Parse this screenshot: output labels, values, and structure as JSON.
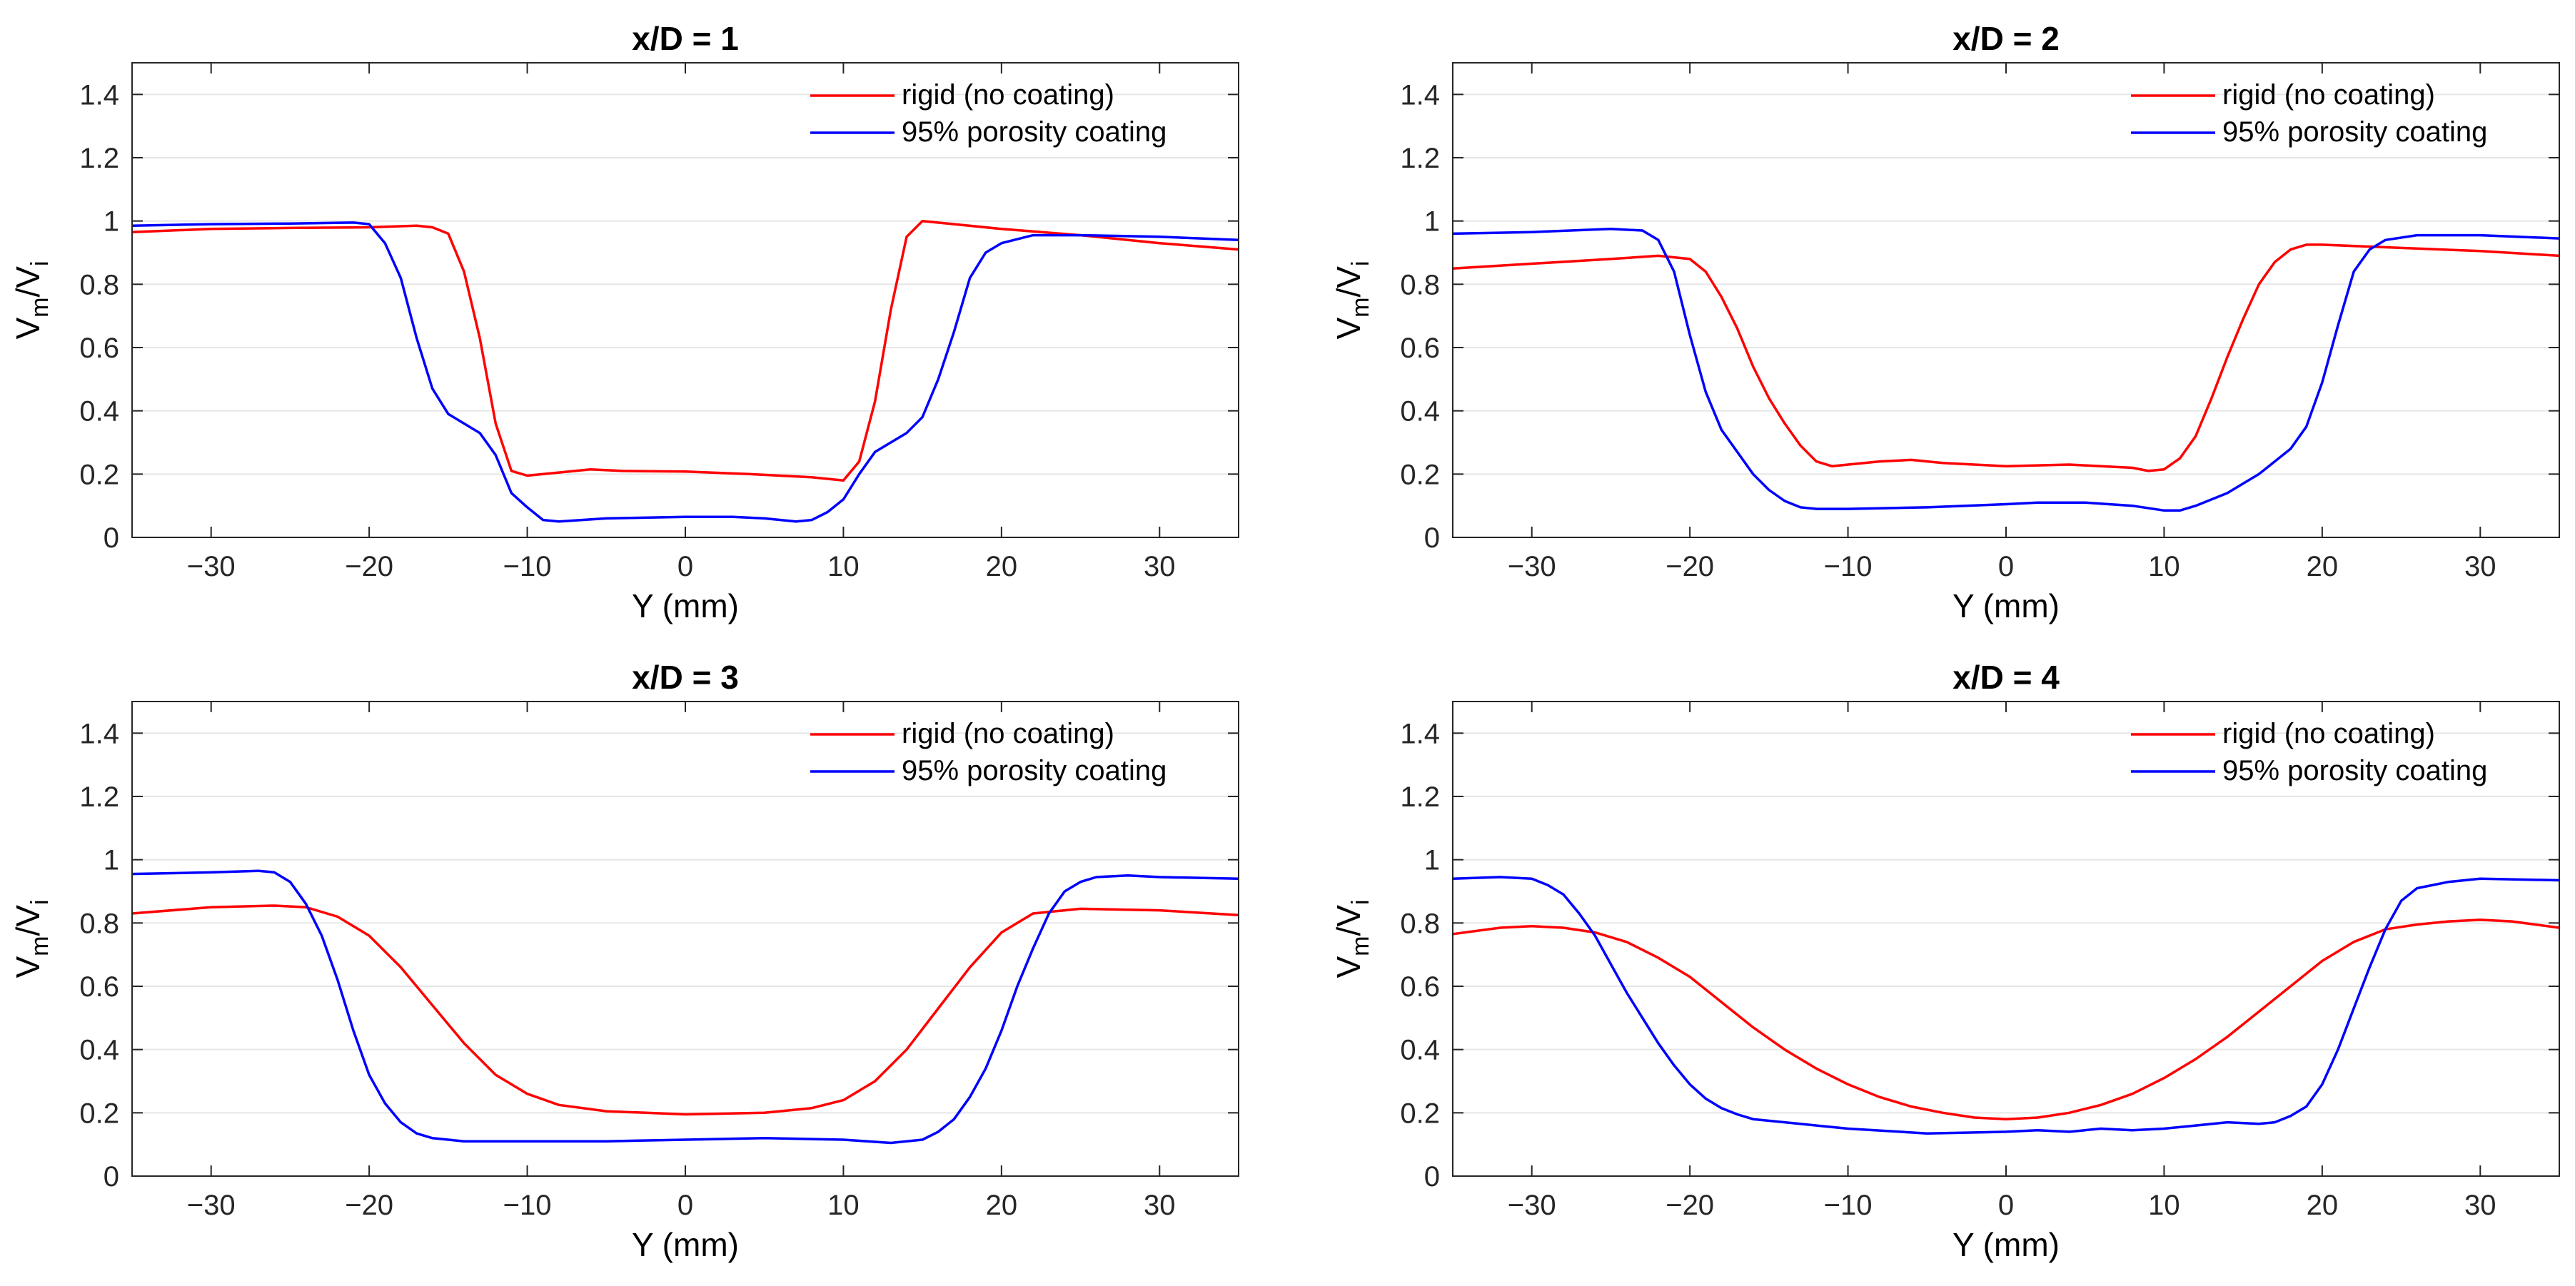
{
  "chart_data": [
    {
      "type": "line",
      "title": "x/D = 1",
      "xlabel": "Y (mm)",
      "ylabel": "V_m/V_i",
      "xlim": [
        -35,
        35
      ],
      "ylim": [
        0,
        1.5
      ],
      "xticks": [
        -30,
        -20,
        -10,
        0,
        10,
        20,
        30
      ],
      "xtick_labels": [
        "−30",
        "−20",
        "−10",
        "0",
        "10",
        "20",
        "30"
      ],
      "yticks": [
        0,
        0.2,
        0.4,
        0.6,
        0.8,
        1,
        1.2,
        1.4
      ],
      "ytick_labels": [
        "0",
        "0.2",
        "0.4",
        "0.6",
        "0.8",
        "1",
        "1.2",
        "1.4"
      ],
      "grid": "horizontal",
      "legend_position": "top-right",
      "series": [
        {
          "name": "rigid (no coating)",
          "color": "#ff0000",
          "x": [
            -35,
            -30,
            -25,
            -20,
            -17,
            -16,
            -15,
            -14,
            -13,
            -12,
            -11,
            -10,
            -9,
            -8,
            -6,
            -4,
            0,
            4,
            8,
            9,
            10,
            11,
            12,
            13,
            14,
            15,
            17,
            20,
            25,
            30,
            35
          ],
          "y": [
            0.965,
            0.975,
            0.978,
            0.98,
            0.985,
            0.98,
            0.96,
            0.84,
            0.63,
            0.36,
            0.21,
            0.195,
            0.2,
            0.205,
            0.215,
            0.21,
            0.208,
            0.2,
            0.19,
            0.185,
            0.18,
            0.24,
            0.43,
            0.72,
            0.95,
            1.0,
            0.99,
            0.975,
            0.955,
            0.93,
            0.91
          ]
        },
        {
          "name": "95% porosity coating",
          "color": "#0000ff",
          "x": [
            -35,
            -30,
            -25,
            -21,
            -20,
            -19,
            -18,
            -17,
            -16,
            -15,
            -13,
            -12,
            -11,
            -10,
            -9,
            -8,
            -5,
            0,
            3,
            5,
            7,
            8,
            9,
            10,
            11,
            12,
            14,
            15,
            16,
            17,
            18,
            19,
            20,
            22,
            25,
            30,
            35
          ],
          "y": [
            0.985,
            0.99,
            0.992,
            0.995,
            0.99,
            0.93,
            0.82,
            0.63,
            0.47,
            0.39,
            0.33,
            0.26,
            0.14,
            0.095,
            0.055,
            0.05,
            0.06,
            0.065,
            0.065,
            0.06,
            0.05,
            0.055,
            0.08,
            0.12,
            0.2,
            0.27,
            0.33,
            0.38,
            0.5,
            0.65,
            0.82,
            0.9,
            0.93,
            0.955,
            0.955,
            0.95,
            0.94
          ]
        }
      ]
    },
    {
      "type": "line",
      "title": "x/D = 2",
      "xlabel": "Y (mm)",
      "ylabel": "V_m/V_i",
      "xlim": [
        -35,
        35
      ],
      "ylim": [
        0,
        1.5
      ],
      "xticks": [
        -30,
        -20,
        -10,
        0,
        10,
        20,
        30
      ],
      "xtick_labels": [
        "−30",
        "−20",
        "−10",
        "0",
        "10",
        "20",
        "30"
      ],
      "yticks": [
        0,
        0.2,
        0.4,
        0.6,
        0.8,
        1,
        1.2,
        1.4
      ],
      "ytick_labels": [
        "0",
        "0.2",
        "0.4",
        "0.6",
        "0.8",
        "1",
        "1.2",
        "1.4"
      ],
      "grid": "horizontal",
      "legend_position": "top-right",
      "series": [
        {
          "name": "rigid (no coating)",
          "color": "#ff0000",
          "x": [
            -35,
            -30,
            -25,
            -22,
            -20,
            -19,
            -18,
            -17,
            -16,
            -15,
            -14,
            -13,
            -12,
            -11,
            -10,
            -8,
            -6,
            -4,
            0,
            4,
            6,
            8,
            9,
            10,
            11,
            12,
            13,
            14,
            15,
            16,
            17,
            18,
            19,
            20,
            25,
            30,
            35
          ],
          "y": [
            0.85,
            0.865,
            0.88,
            0.89,
            0.88,
            0.84,
            0.76,
            0.66,
            0.54,
            0.44,
            0.36,
            0.29,
            0.24,
            0.225,
            0.23,
            0.24,
            0.245,
            0.235,
            0.225,
            0.23,
            0.225,
            0.22,
            0.21,
            0.215,
            0.25,
            0.32,
            0.44,
            0.57,
            0.69,
            0.8,
            0.87,
            0.91,
            0.925,
            0.925,
            0.915,
            0.905,
            0.89
          ]
        },
        {
          "name": "95% porosity coating",
          "color": "#0000ff",
          "x": [
            -35,
            -30,
            -25,
            -23,
            -22,
            -21,
            -20,
            -19,
            -18,
            -17,
            -16,
            -15,
            -14,
            -13,
            -12,
            -10,
            -5,
            0,
            2,
            5,
            8,
            10,
            11,
            12,
            14,
            16,
            18,
            19,
            20,
            21,
            22,
            23,
            24,
            26,
            30,
            35
          ],
          "y": [
            0.96,
            0.965,
            0.975,
            0.97,
            0.94,
            0.84,
            0.64,
            0.46,
            0.34,
            0.27,
            0.2,
            0.15,
            0.115,
            0.095,
            0.09,
            0.09,
            0.095,
            0.105,
            0.11,
            0.11,
            0.1,
            0.085,
            0.085,
            0.1,
            0.14,
            0.2,
            0.28,
            0.35,
            0.49,
            0.67,
            0.84,
            0.91,
            0.94,
            0.955,
            0.955,
            0.945
          ]
        }
      ]
    },
    {
      "type": "line",
      "title": "x/D = 3",
      "xlabel": "Y (mm)",
      "ylabel": "V_m/V_i",
      "xlim": [
        -35,
        35
      ],
      "ylim": [
        0,
        1.5
      ],
      "xticks": [
        -30,
        -20,
        -10,
        0,
        10,
        20,
        30
      ],
      "xtick_labels": [
        "−30",
        "−20",
        "−10",
        "0",
        "10",
        "20",
        "30"
      ],
      "yticks": [
        0,
        0.2,
        0.4,
        0.6,
        0.8,
        1,
        1.2,
        1.4
      ],
      "ytick_labels": [
        "0",
        "0.2",
        "0.4",
        "0.6",
        "0.8",
        "1",
        "1.2",
        "1.4"
      ],
      "grid": "horizontal",
      "legend_position": "top-right",
      "series": [
        {
          "name": "rigid (no coating)",
          "color": "#ff0000",
          "x": [
            -35,
            -30,
            -26,
            -24,
            -22,
            -20,
            -18,
            -16,
            -14,
            -12,
            -10,
            -8,
            -5,
            0,
            5,
            8,
            10,
            12,
            14,
            16,
            18,
            20,
            22,
            25,
            30,
            35
          ],
          "y": [
            0.83,
            0.85,
            0.855,
            0.85,
            0.82,
            0.76,
            0.66,
            0.54,
            0.42,
            0.32,
            0.26,
            0.225,
            0.205,
            0.195,
            0.2,
            0.215,
            0.24,
            0.3,
            0.4,
            0.53,
            0.66,
            0.77,
            0.83,
            0.845,
            0.84,
            0.825
          ]
        },
        {
          "name": "95% porosity coating",
          "color": "#0000ff",
          "x": [
            -35,
            -30,
            -27,
            -26,
            -25,
            -24,
            -23,
            -22,
            -21,
            -20,
            -19,
            -18,
            -17,
            -16,
            -15,
            -14,
            -12,
            -10,
            -5,
            0,
            5,
            10,
            13,
            15,
            16,
            17,
            18,
            19,
            20,
            21,
            22,
            23,
            24,
            25,
            26,
            28,
            30,
            35
          ],
          "y": [
            0.955,
            0.96,
            0.965,
            0.96,
            0.93,
            0.86,
            0.76,
            0.62,
            0.46,
            0.32,
            0.23,
            0.17,
            0.135,
            0.12,
            0.115,
            0.11,
            0.11,
            0.11,
            0.11,
            0.115,
            0.12,
            0.115,
            0.105,
            0.115,
            0.14,
            0.18,
            0.25,
            0.34,
            0.46,
            0.6,
            0.72,
            0.83,
            0.9,
            0.93,
            0.945,
            0.95,
            0.945,
            0.94
          ]
        }
      ]
    },
    {
      "type": "line",
      "title": "x/D = 4",
      "xlabel": "Y (mm)",
      "ylabel": "V_m/V_i",
      "xlim": [
        -35,
        35
      ],
      "ylim": [
        0,
        1.5
      ],
      "xticks": [
        -30,
        -20,
        -10,
        0,
        10,
        20,
        30
      ],
      "xtick_labels": [
        "−30",
        "−20",
        "−10",
        "0",
        "10",
        "20",
        "30"
      ],
      "yticks": [
        0,
        0.2,
        0.4,
        0.6,
        0.8,
        1,
        1.2,
        1.4
      ],
      "ytick_labels": [
        "0",
        "0.2",
        "0.4",
        "0.6",
        "0.8",
        "1",
        "1.2",
        "1.4"
      ],
      "grid": "horizontal",
      "legend_position": "top-right",
      "series": [
        {
          "name": "rigid (no coating)",
          "color": "#ff0000",
          "x": [
            -35,
            -32,
            -30,
            -28,
            -26,
            -24,
            -22,
            -20,
            -18,
            -16,
            -14,
            -12,
            -10,
            -8,
            -6,
            -4,
            -2,
            0,
            2,
            4,
            6,
            8,
            10,
            12,
            14,
            16,
            18,
            20,
            22,
            24,
            26,
            28,
            30,
            32,
            35
          ],
          "y": [
            0.765,
            0.785,
            0.79,
            0.785,
            0.77,
            0.74,
            0.69,
            0.63,
            0.55,
            0.47,
            0.4,
            0.34,
            0.29,
            0.25,
            0.22,
            0.2,
            0.185,
            0.18,
            0.185,
            0.2,
            0.225,
            0.26,
            0.31,
            0.37,
            0.44,
            0.52,
            0.6,
            0.68,
            0.74,
            0.78,
            0.795,
            0.805,
            0.81,
            0.805,
            0.785
          ]
        },
        {
          "name": "95% porosity coating",
          "color": "#0000ff",
          "x": [
            -35,
            -32,
            -30,
            -29,
            -28,
            -27,
            -26,
            -25,
            -24,
            -23,
            -22,
            -21,
            -20,
            -19,
            -18,
            -17,
            -16,
            -14,
            -12,
            -10,
            -5,
            0,
            2,
            4,
            6,
            8,
            10,
            12,
            14,
            16,
            17,
            18,
            19,
            20,
            21,
            22,
            23,
            24,
            25,
            26,
            28,
            30,
            35
          ],
          "y": [
            0.94,
            0.945,
            0.94,
            0.92,
            0.89,
            0.83,
            0.76,
            0.67,
            0.58,
            0.5,
            0.42,
            0.35,
            0.29,
            0.245,
            0.215,
            0.195,
            0.18,
            0.17,
            0.16,
            0.15,
            0.135,
            0.14,
            0.145,
            0.14,
            0.15,
            0.145,
            0.15,
            0.16,
            0.17,
            0.165,
            0.17,
            0.19,
            0.22,
            0.29,
            0.4,
            0.53,
            0.66,
            0.78,
            0.87,
            0.91,
            0.93,
            0.94,
            0.935
          ]
        }
      ]
    }
  ]
}
